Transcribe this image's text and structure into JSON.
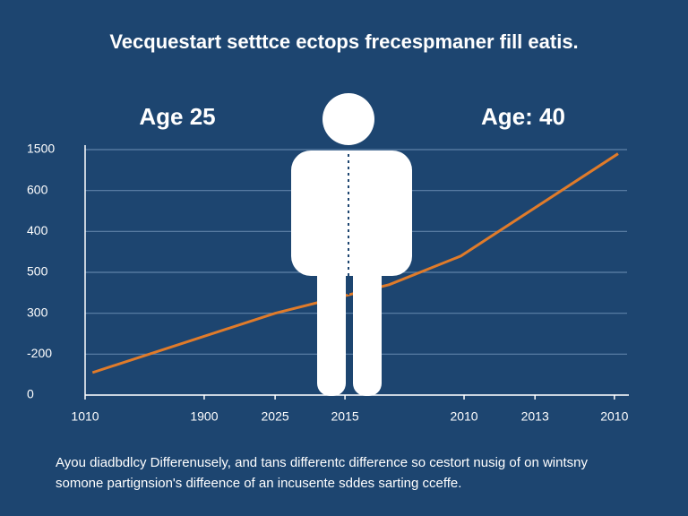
{
  "chart_data": {
    "type": "line",
    "title": "Vecquestart setttce ectops frecespmaner fill eatis.",
    "annotations": [
      "Age 25",
      "Age: 40"
    ],
    "caption": [
      "Ayou diadbdlcy Differenusely, and tans differentc difference so cestort nusig of on wintsny",
      "somone partignsion's diffeence of an incusente sddes sarting cceffe."
    ],
    "x": [
      1.4,
      35.9,
      57.5,
      71,
      100.7
    ],
    "series": [
      {
        "name": null,
        "color": "#e07b2a",
        "values": [
          0.55,
          2.0,
          2.7,
          3.4,
          5.9
        ]
      }
    ],
    "xlim": [
      0,
      102.4
    ],
    "xticks": [
      {
        "value": 0,
        "label": "1010"
      },
      {
        "value": 22.5,
        "label": "1900"
      },
      {
        "value": 35.9,
        "label": "2025"
      },
      {
        "value": 49.1,
        "label": "2015"
      },
      {
        "value": 71.6,
        "label": "2010"
      },
      {
        "value": 85,
        "label": "2013"
      },
      {
        "value": 100,
        "label": "2010"
      }
    ],
    "ylim": [
      0,
      6
    ],
    "yticks": [
      {
        "value": 6,
        "label": "1500"
      },
      {
        "value": 5,
        "label": "600"
      },
      {
        "value": 4,
        "label": "400"
      },
      {
        "value": 3,
        "label": "500"
      },
      {
        "value": 2,
        "label": "300"
      },
      {
        "value": 1,
        "label": "-200"
      },
      {
        "value": 0,
        "label": "0"
      }
    ],
    "grid": true
  }
}
